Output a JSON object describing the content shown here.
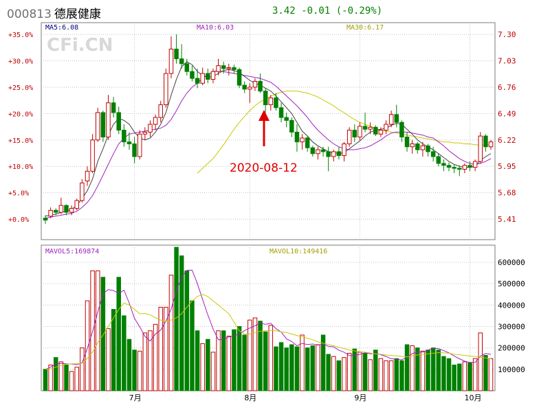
{
  "header": {
    "code": "000813",
    "name": "德展健康",
    "quote": "3.42  -0.01  (-0.29%)"
  },
  "watermark": "CFi.CN",
  "annotation": {
    "date_label": "2020-08-12",
    "color": "#e00000"
  },
  "colors": {
    "up": "#c00000",
    "down": "#008000",
    "ma5": "#000000",
    "ma10": "#a020c0",
    "ma30": "#c8c800",
    "grid": "#c0c0c0",
    "axis_text": "#c00000"
  },
  "chart_data": [
    {
      "type": "candlestick",
      "legend": [
        {
          "label": "MA5:6.08",
          "color": "#000080"
        },
        {
          "label": "MA10:6.03",
          "color": "#a020c0"
        },
        {
          "label": "MA30:6.17",
          "color": "#a0a000"
        }
      ],
      "ylim": [
        5.2,
        7.42
      ],
      "left_ticks": [
        "+35.0%",
        "+30.0%",
        "+25.0%",
        "+20.0%",
        "+15.0%",
        "+10.0%",
        "+5.0%",
        "+0.0%"
      ],
      "right_ticks": [
        "7.30",
        "7.03",
        "6.76",
        "6.49",
        "6.22",
        "5.95",
        "5.68",
        "5.41"
      ],
      "right_tick_values": [
        7.3,
        7.03,
        6.76,
        6.49,
        6.22,
        5.95,
        5.68,
        5.41
      ],
      "x_ticks": [
        {
          "label": "7月",
          "index": 17
        },
        {
          "label": "8月",
          "index": 39
        },
        {
          "label": "9月",
          "index": 60
        },
        {
          "label": "10月",
          "index": 81
        }
      ],
      "ohlc": [
        [
          5.42,
          5.45,
          5.36,
          5.4
        ],
        [
          5.44,
          5.53,
          5.42,
          5.5
        ],
        [
          5.5,
          5.52,
          5.45,
          5.48
        ],
        [
          5.48,
          5.63,
          5.46,
          5.55
        ],
        [
          5.55,
          5.56,
          5.45,
          5.48
        ],
        [
          5.48,
          5.55,
          5.45,
          5.52
        ],
        [
          5.52,
          5.62,
          5.5,
          5.6
        ],
        [
          5.6,
          5.82,
          5.58,
          5.78
        ],
        [
          5.8,
          5.95,
          5.75,
          5.9
        ],
        [
          5.9,
          6.28,
          5.88,
          6.22
        ],
        [
          6.22,
          6.55,
          6.2,
          6.5
        ],
        [
          6.5,
          6.52,
          6.2,
          6.25
        ],
        [
          6.25,
          6.68,
          6.22,
          6.6
        ],
        [
          6.6,
          6.66,
          6.45,
          6.5
        ],
        [
          6.5,
          6.56,
          6.28,
          6.32
        ],
        [
          6.32,
          6.38,
          6.15,
          6.2
        ],
        [
          6.2,
          6.3,
          6.12,
          6.18
        ],
        [
          6.18,
          6.25,
          5.98,
          6.05
        ],
        [
          6.05,
          6.32,
          6.02,
          6.28
        ],
        [
          6.28,
          6.35,
          6.22,
          6.3
        ],
        [
          6.3,
          6.42,
          6.25,
          6.38
        ],
        [
          6.38,
          6.48,
          6.32,
          6.45
        ],
        [
          6.45,
          6.62,
          6.4,
          6.58
        ],
        [
          6.58,
          6.95,
          6.55,
          6.9
        ],
        [
          6.9,
          7.28,
          6.85,
          7.15
        ],
        [
          7.15,
          7.3,
          7.0,
          7.05
        ],
        [
          7.05,
          7.2,
          6.95,
          7.0
        ],
        [
          7.0,
          7.05,
          6.88,
          6.92
        ],
        [
          6.92,
          6.98,
          6.82,
          6.85
        ],
        [
          6.85,
          6.95,
          6.75,
          6.8
        ],
        [
          6.8,
          6.96,
          6.78,
          6.9
        ],
        [
          6.9,
          6.95,
          6.8,
          6.84
        ],
        [
          6.84,
          6.95,
          6.8,
          6.92
        ],
        [
          6.92,
          7.05,
          6.88,
          6.98
        ],
        [
          6.98,
          7.02,
          6.9,
          6.95
        ],
        [
          6.95,
          7.0,
          6.88,
          6.96
        ],
        [
          6.96,
          6.99,
          6.9,
          6.94
        ],
        [
          6.94,
          6.96,
          6.75,
          6.78
        ],
        [
          6.78,
          6.82,
          6.7,
          6.74
        ],
        [
          6.74,
          6.8,
          6.6,
          6.76
        ],
        [
          6.76,
          6.85,
          6.72,
          6.82
        ],
        [
          6.82,
          6.9,
          6.7,
          6.72
        ],
        [
          6.72,
          6.75,
          6.5,
          6.58
        ],
        [
          6.58,
          6.68,
          6.52,
          6.65
        ],
        [
          6.65,
          6.7,
          6.52,
          6.55
        ],
        [
          6.55,
          6.6,
          6.4,
          6.45
        ],
        [
          6.45,
          6.5,
          6.35,
          6.42
        ],
        [
          6.42,
          6.45,
          6.25,
          6.3
        ],
        [
          6.3,
          6.38,
          6.1,
          6.2
        ],
        [
          6.2,
          6.28,
          6.12,
          6.24
        ],
        [
          6.24,
          6.26,
          6.1,
          6.14
        ],
        [
          6.14,
          6.16,
          6.05,
          6.08
        ],
        [
          6.08,
          6.15,
          6.02,
          6.12
        ],
        [
          6.12,
          6.15,
          6.05,
          6.1
        ],
        [
          6.1,
          6.15,
          5.9,
          6.05
        ],
        [
          6.05,
          6.12,
          6.0,
          6.1
        ],
        [
          6.1,
          6.15,
          6.02,
          6.06
        ],
        [
          6.06,
          6.2,
          6.0,
          6.18
        ],
        [
          6.18,
          6.35,
          6.15,
          6.32
        ],
        [
          6.32,
          6.38,
          6.2,
          6.25
        ],
        [
          6.25,
          6.4,
          6.22,
          6.36
        ],
        [
          6.36,
          6.5,
          6.3,
          6.33
        ],
        [
          6.33,
          6.4,
          6.28,
          6.35
        ],
        [
          6.35,
          6.37,
          6.26,
          6.28
        ],
        [
          6.28,
          6.35,
          6.25,
          6.32
        ],
        [
          6.32,
          6.42,
          6.28,
          6.38
        ],
        [
          6.38,
          6.52,
          6.35,
          6.48
        ],
        [
          6.48,
          6.58,
          6.35,
          6.4
        ],
        [
          6.4,
          6.42,
          6.2,
          6.25
        ],
        [
          6.25,
          6.3,
          6.1,
          6.15
        ],
        [
          6.15,
          6.22,
          6.08,
          6.18
        ],
        [
          6.18,
          6.2,
          6.08,
          6.12
        ],
        [
          6.12,
          6.2,
          6.05,
          6.16
        ],
        [
          6.16,
          6.18,
          6.05,
          6.1
        ],
        [
          6.1,
          6.15,
          6.0,
          6.05
        ],
        [
          6.05,
          6.08,
          5.95,
          5.98
        ],
        [
          5.98,
          6.02,
          5.9,
          5.96
        ],
        [
          5.96,
          5.99,
          5.9,
          5.94
        ],
        [
          5.94,
          5.97,
          5.88,
          5.93
        ],
        [
          5.93,
          5.96,
          5.85,
          5.92
        ],
        [
          5.92,
          5.98,
          5.88,
          5.96
        ],
        [
          5.96,
          6.0,
          5.9,
          5.94
        ],
        [
          5.94,
          6.02,
          5.9,
          6.0
        ],
        [
          6.0,
          6.3,
          5.98,
          6.26
        ],
        [
          6.26,
          6.28,
          6.1,
          6.15
        ],
        [
          6.15,
          6.22,
          6.12,
          6.2
        ]
      ],
      "ma5": [
        5.44,
        5.45,
        5.46,
        5.48,
        5.49,
        5.51,
        5.55,
        5.62,
        5.7,
        5.82,
        6.0,
        6.13,
        6.27,
        6.38,
        6.44,
        6.42,
        6.38,
        6.3,
        6.24,
        6.22,
        6.24,
        6.3,
        6.38,
        6.5,
        6.68,
        6.84,
        6.97,
        7.02,
        6.99,
        6.92,
        6.88,
        6.86,
        6.87,
        6.9,
        6.93,
        6.94,
        6.93,
        6.91,
        6.87,
        6.83,
        6.8,
        6.78,
        6.75,
        6.72,
        6.67,
        6.61,
        6.55,
        6.49,
        6.4,
        6.31,
        6.26,
        6.2,
        6.16,
        6.13,
        6.1,
        6.09,
        6.08,
        6.09,
        6.13,
        6.17,
        6.21,
        6.26,
        6.3,
        6.32,
        6.33,
        6.34,
        6.37,
        6.39,
        6.38,
        6.33,
        6.28,
        6.22,
        6.18,
        6.15,
        6.12,
        6.08,
        6.04,
        6.0,
        5.97,
        5.95,
        5.94,
        5.94,
        5.95,
        6.01,
        6.05,
        6.08
      ],
      "ma10": [
        5.42,
        5.43,
        5.44,
        5.45,
        5.46,
        5.47,
        5.49,
        5.53,
        5.58,
        5.65,
        5.75,
        5.86,
        5.97,
        6.08,
        6.18,
        6.24,
        6.28,
        6.29,
        6.3,
        6.31,
        6.32,
        6.33,
        6.34,
        6.37,
        6.43,
        6.52,
        6.62,
        6.7,
        6.76,
        6.8,
        6.85,
        6.89,
        6.92,
        6.93,
        6.92,
        6.91,
        6.9,
        6.89,
        6.88,
        6.87,
        6.86,
        6.85,
        6.83,
        6.81,
        6.77,
        6.72,
        6.67,
        6.62,
        6.57,
        6.51,
        6.45,
        6.38,
        6.32,
        6.27,
        6.22,
        6.18,
        6.15,
        6.13,
        6.12,
        6.12,
        6.13,
        6.14,
        6.16,
        6.19,
        6.22,
        6.26,
        6.29,
        6.3,
        6.3,
        6.3,
        6.29,
        6.28,
        6.27,
        6.25,
        6.24,
        6.2,
        6.16,
        6.11,
        6.07,
        6.03,
        6.0,
        5.98,
        5.97,
        5.98,
        6.0,
        6.03
      ],
      "ma30": [
        null,
        null,
        null,
        null,
        null,
        null,
        null,
        null,
        null,
        null,
        null,
        null,
        null,
        null,
        null,
        null,
        null,
        null,
        null,
        null,
        null,
        null,
        null,
        null,
        null,
        null,
        null,
        null,
        null,
        5.88,
        5.93,
        5.98,
        6.03,
        6.1,
        6.17,
        6.25,
        6.33,
        6.4,
        6.46,
        6.52,
        6.57,
        6.61,
        6.64,
        6.67,
        6.69,
        6.71,
        6.72,
        6.72,
        6.72,
        6.71,
        6.7,
        6.68,
        6.66,
        6.63,
        6.6,
        6.57,
        6.53,
        6.5,
        6.46,
        6.43,
        6.4,
        6.38,
        6.36,
        6.34,
        6.32,
        6.31,
        6.3,
        6.29,
        6.28,
        6.27,
        6.26,
        6.25,
        6.24,
        6.23,
        6.22,
        6.21,
        6.2,
        6.2,
        6.19,
        6.19,
        6.18,
        6.18,
        6.17,
        6.17,
        6.17,
        6.17
      ],
      "start_ma30_hint": "MA30 starts mid-series as in source"
    },
    {
      "type": "bar",
      "legend": [
        {
          "label": "MAVOL5:169874",
          "color": "#a020c0"
        },
        {
          "label": "MAVOL10:149416",
          "color": "#a0a000"
        }
      ],
      "ylim": [
        0,
        680000
      ],
      "right_ticks": [
        "600000",
        "500000",
        "400000",
        "300000",
        "200000",
        "100000"
      ],
      "right_tick_values": [
        600000,
        500000,
        400000,
        300000,
        200000,
        100000
      ],
      "volume": [
        100000,
        120000,
        155000,
        135000,
        120000,
        90000,
        110000,
        200000,
        420000,
        560000,
        560000,
        530000,
        290000,
        380000,
        530000,
        350000,
        240000,
        190000,
        185000,
        270000,
        280000,
        310000,
        390000,
        390000,
        540000,
        670000,
        630000,
        560000,
        420000,
        280000,
        220000,
        240000,
        180000,
        280000,
        280000,
        255000,
        285000,
        300000,
        260000,
        330000,
        340000,
        325000,
        275000,
        305000,
        205000,
        225000,
        200000,
        215000,
        205000,
        260000,
        200000,
        210000,
        215000,
        260000,
        170000,
        160000,
        140000,
        155000,
        175000,
        195000,
        180000,
        175000,
        145000,
        190000,
        150000,
        140000,
        140000,
        150000,
        140000,
        215000,
        210000,
        200000,
        185000,
        190000,
        200000,
        190000,
        160000,
        150000,
        120000,
        125000,
        135000,
        130000,
        150000,
        270000,
        165000,
        150000
      ],
      "mavol5": [
        100000,
        110000,
        125000,
        128000,
        126000,
        124000,
        122000,
        130000,
        197000,
        276000,
        368000,
        454000,
        472000,
        468000,
        454000,
        470000,
        409000,
        338000,
        299000,
        254000,
        232000,
        265000,
        283000,
        325000,
        382000,
        466000,
        532000,
        562000,
        563000,
        500000,
        426000,
        354000,
        288000,
        238000,
        240000,
        251000,
        256000,
        265000,
        281000,
        293000,
        303000,
        316000,
        310000,
        315000,
        290000,
        274000,
        242000,
        230000,
        210000,
        221000,
        216000,
        218000,
        213000,
        218000,
        208000,
        205000,
        189000,
        180000,
        164000,
        165000,
        170000,
        177000,
        172000,
        177000,
        168000,
        160000,
        149000,
        148000,
        144000,
        157000,
        173000,
        181000,
        180000,
        190000,
        198000,
        197000,
        187000,
        177000,
        162000,
        149000,
        138000,
        132000,
        132000,
        162000,
        174000,
        170000
      ],
      "mavol10": [
        100000,
        102000,
        110000,
        118000,
        124000,
        125000,
        126000,
        128000,
        150000,
        180000,
        225000,
        260000,
        300000,
        340000,
        380000,
        410000,
        400000,
        380000,
        360000,
        360000,
        355000,
        340000,
        330000,
        325000,
        330000,
        340000,
        360000,
        390000,
        420000,
        440000,
        450000,
        440000,
        420000,
        400000,
        380000,
        360000,
        320000,
        280000,
        265000,
        265000,
        270000,
        278000,
        280000,
        282000,
        280000,
        275000,
        272000,
        265000,
        258000,
        252000,
        245000,
        238000,
        228000,
        222000,
        216000,
        210000,
        203000,
        197000,
        190000,
        186000,
        182000,
        180000,
        176000,
        172000,
        170000,
        167000,
        165000,
        163000,
        160000,
        158000,
        163000,
        167000,
        170000,
        172000,
        175000,
        178000,
        177000,
        175000,
        170000,
        168000,
        165000,
        162000,
        160000,
        156000,
        153000,
        149000
      ]
    }
  ]
}
